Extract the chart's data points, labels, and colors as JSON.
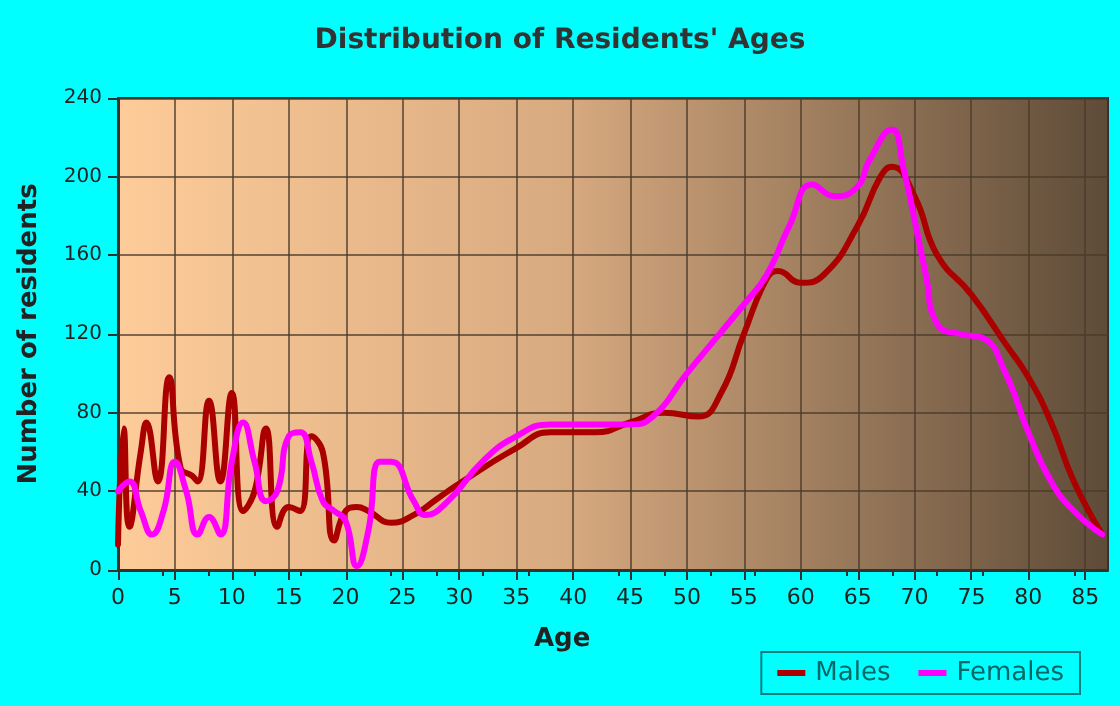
{
  "chart_data": {
    "type": "line",
    "title": "Distribution of Residents' Ages",
    "xlabel": "Age",
    "ylabel": "Number of residents",
    "xlim": [
      0,
      87
    ],
    "xticks": [
      0,
      5,
      10,
      15,
      20,
      25,
      30,
      35,
      40,
      45,
      50,
      55,
      60,
      65,
      70,
      75,
      80,
      85
    ],
    "ylim": [
      0,
      240
    ],
    "yticks": [
      0,
      40,
      80,
      120,
      160,
      200,
      240
    ],
    "grid": true,
    "legend": "bottom right",
    "marker": "none",
    "line_style": "solid",
    "series": [
      {
        "name": "Males",
        "color": "#aa0000",
        "x": [
          0,
          0.5,
          1,
          2,
          2.5,
          3.5,
          4.5,
          5.5,
          6.5,
          7,
          8,
          9,
          10,
          11,
          12,
          13,
          14,
          15,
          16,
          17,
          18,
          19,
          20,
          21,
          22,
          24,
          26,
          28,
          30,
          35,
          38,
          42,
          45,
          48,
          51,
          53,
          55,
          57,
          58,
          60,
          62,
          65,
          67,
          68,
          70,
          72,
          75,
          78,
          80,
          82,
          84,
          86.5
        ],
        "values": [
          13,
          72,
          22,
          60,
          75,
          45,
          98,
          52,
          48,
          45,
          86,
          45,
          90,
          30,
          40,
          72,
          22,
          32,
          30,
          68,
          60,
          15,
          30,
          32,
          30,
          24,
          28,
          36,
          44,
          62,
          70,
          70,
          75,
          80,
          78,
          90,
          120,
          148,
          152,
          146,
          150,
          175,
          200,
          205,
          190,
          160,
          140,
          115,
          98,
          75,
          45,
          18
        ]
      },
      {
        "name": "Females",
        "color": "#ff00ff",
        "x": [
          0,
          1,
          2,
          3,
          4,
          5,
          6,
          7,
          8,
          9,
          10,
          11,
          12,
          13,
          14,
          15,
          16,
          17,
          18,
          19,
          20,
          21,
          22,
          23,
          24,
          26,
          27,
          29,
          32,
          35,
          38,
          42,
          45,
          47,
          50,
          55,
          57,
          59,
          61,
          63,
          65,
          66,
          68,
          69,
          71,
          72,
          74,
          76,
          78,
          80,
          82,
          84,
          86.5
        ],
        "values": [
          40,
          45,
          30,
          18,
          30,
          55,
          40,
          18,
          27,
          18,
          55,
          75,
          55,
          35,
          40,
          68,
          70,
          55,
          35,
          30,
          25,
          2,
          20,
          55,
          55,
          35,
          28,
          35,
          55,
          68,
          74,
          74,
          74,
          78,
          100,
          135,
          150,
          175,
          196,
          190,
          195,
          208,
          224,
          205,
          150,
          125,
          120,
          118,
          100,
          70,
          45,
          30,
          18
        ]
      }
    ]
  }
}
